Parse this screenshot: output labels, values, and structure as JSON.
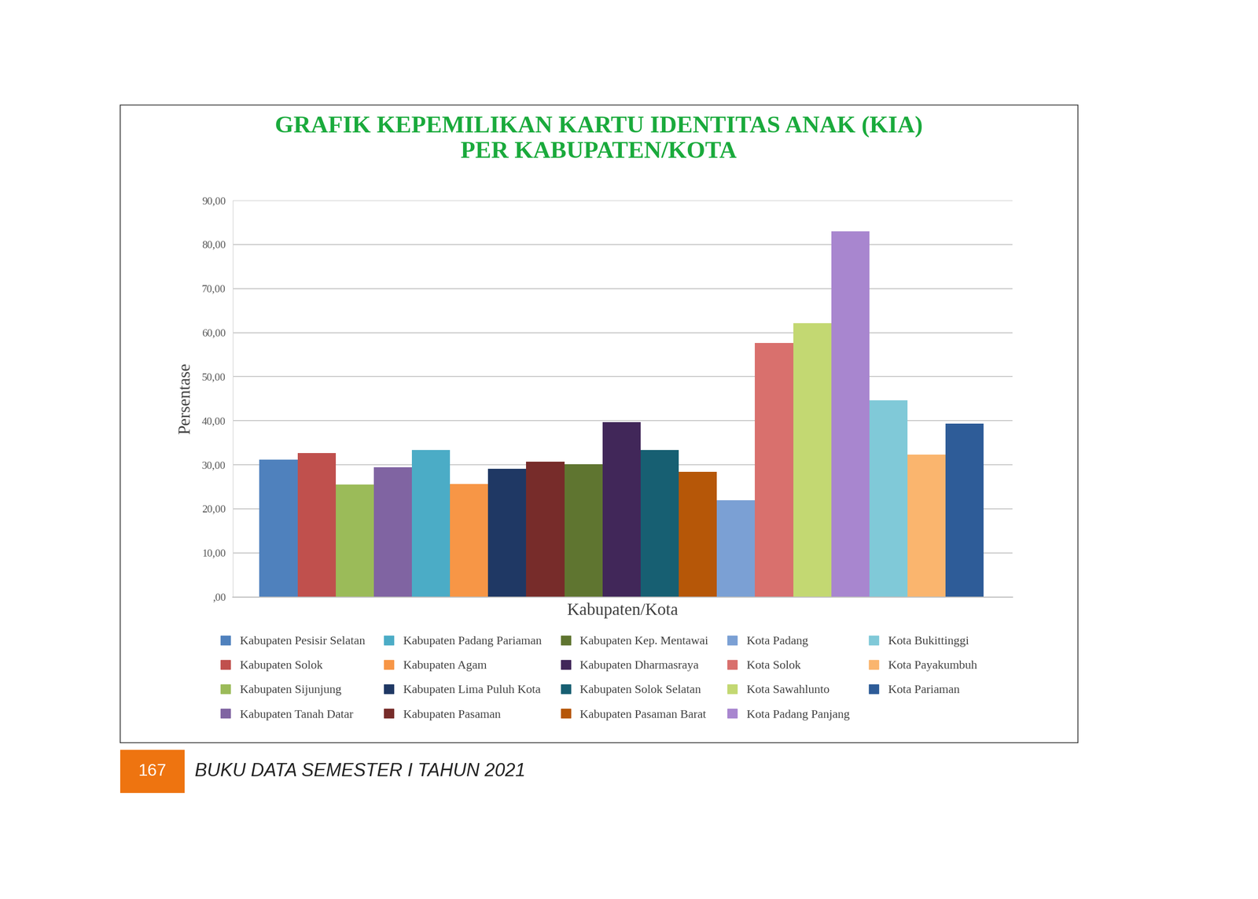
{
  "chart_data": {
    "type": "bar",
    "title": "GRAFIK KEPEMILIKAN KARTU IDENTITAS ANAK (KIA)\nPER KABUPATEN/KOTA",
    "x_label": "Kabupaten/Kota",
    "y_label": "Persentase",
    "categories": [
      "Kabupaten Pesisir Selatan",
      "Kabupaten Solok",
      "Kabupaten Sijunjung",
      "Kabupaten Tanah Datar",
      "Kabupaten Padang Pariaman",
      "Kabupaten Agam",
      "Kabupaten Lima Puluh Kota",
      "Kabupaten Pasaman",
      "Kabupaten Kep. Mentawai",
      "Kabupaten Dharmasraya",
      "Kabupaten Solok Selatan",
      "Kabupaten Pasaman Barat",
      "Kota Padang",
      "Kota Solok",
      "Kota Sawahlunto",
      "Kota Padang Panjang",
      "Kota Bukittinggi",
      "Kota Payakumbuh",
      "Kota Pariaman"
    ],
    "values": [
      31.2,
      32.7,
      25.5,
      29.4,
      33.4,
      25.6,
      29.1,
      30.7,
      30.1,
      39.7,
      33.3,
      28.4,
      22.0,
      57.7,
      62.1,
      83.0,
      44.6,
      32.3,
      39.4
    ],
    "colors": [
      "#4f81bd",
      "#c0504d",
      "#9bbb59",
      "#8064a2",
      "#4bacc6",
      "#f79646",
      "#1f3864",
      "#772c2a",
      "#5f7530",
      "#412759",
      "#175f72",
      "#b65708",
      "#7ba0d4",
      "#d9706d",
      "#c3d872",
      "#a886cf",
      "#80c9d8",
      "#fab56e",
      "#2e5c98"
    ],
    "ylim": [
      0,
      90
    ],
    "yticks": [
      {
        "value": 0,
        "label": ",00"
      },
      {
        "value": 10,
        "label": "10,00"
      },
      {
        "value": 20,
        "label": "20,00"
      },
      {
        "value": 30,
        "label": "30,00"
      },
      {
        "value": 40,
        "label": "40,00"
      },
      {
        "value": 50,
        "label": "50,00"
      },
      {
        "value": 60,
        "label": "60,00"
      },
      {
        "value": 70,
        "label": "70,00"
      },
      {
        "value": 80,
        "label": "80,00"
      },
      {
        "value": 90,
        "label": "90,00"
      }
    ],
    "grid": true,
    "legend": "bottom",
    "tick_labels": "y"
  },
  "footer": {
    "page": "167",
    "text": "BUKU DATA SEMESTER I TAHUN 2021"
  }
}
